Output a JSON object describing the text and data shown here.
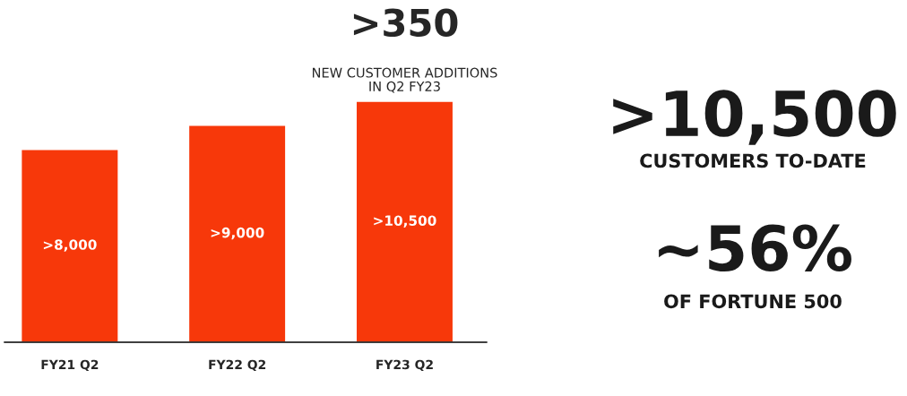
{
  "chart_data": {
    "type": "bar",
    "categories": [
      "FY21 Q2",
      "FY22 Q2",
      "FY23 Q2"
    ],
    "values": [
      8400,
      9450,
      10500
    ],
    "value_labels": [
      ">8,000",
      ">9,000",
      ">10,500"
    ],
    "color": "#f7380a",
    "ylim": [
      0,
      10500
    ],
    "tick_labels": "x",
    "grid": false,
    "annotations": [
      {
        "text": ">350\nNEW CUSTOMER ADDITIONS\nIN Q2 FY23",
        "x": "FY23 Q2",
        "y": 10500
      },
      ">10,500",
      "CUSTOMERS TO-DATE",
      "~56%",
      "OF FORTUNE 500"
    ]
  }
}
